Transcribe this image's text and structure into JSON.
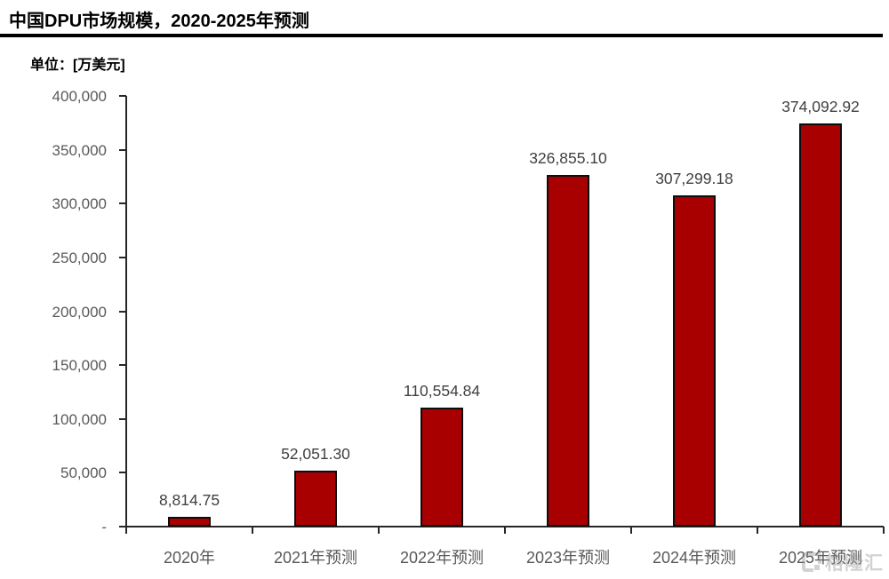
{
  "header": {
    "title": "中国DPU市场规模，2020-2025年预测",
    "unit_label": "单位：[万美元]"
  },
  "watermark": {
    "text": "格隆汇",
    "icon": "gelonghui-logo-icon"
  },
  "colors": {
    "bar_fill": "#a80000",
    "bar_border": "#0d0d0d",
    "axis_line": "#262626",
    "axis_text": "#595959",
    "value_text": "#404040",
    "title_text": "#000000"
  },
  "chart_data": {
    "type": "bar",
    "title": "中国DPU市场规模，2020-2025年预测",
    "xlabel": "",
    "ylabel": "单位：[万美元]",
    "categories": [
      "2020年",
      "2021年预测",
      "2022年预测",
      "2023年预测",
      "2024年预测",
      "2025年预测"
    ],
    "values": [
      8814.75,
      52051.3,
      110554.84,
      326855.1,
      307299.18,
      374092.92
    ],
    "value_labels": [
      "8,814.75",
      "52,051.30",
      "110,554.84",
      "326,855.10",
      "307,299.18",
      "374,092.92"
    ],
    "ylim": [
      0,
      400000
    ],
    "ytick_interval": 50000,
    "ytick_labels_bottom_to_top": [
      "-",
      "50,000",
      "100,000",
      "150,000",
      "200,000",
      "250,000",
      "300,000",
      "350,000",
      "400,000"
    ],
    "grid": false,
    "legend_position": "none",
    "bar_color": "#a80000"
  }
}
